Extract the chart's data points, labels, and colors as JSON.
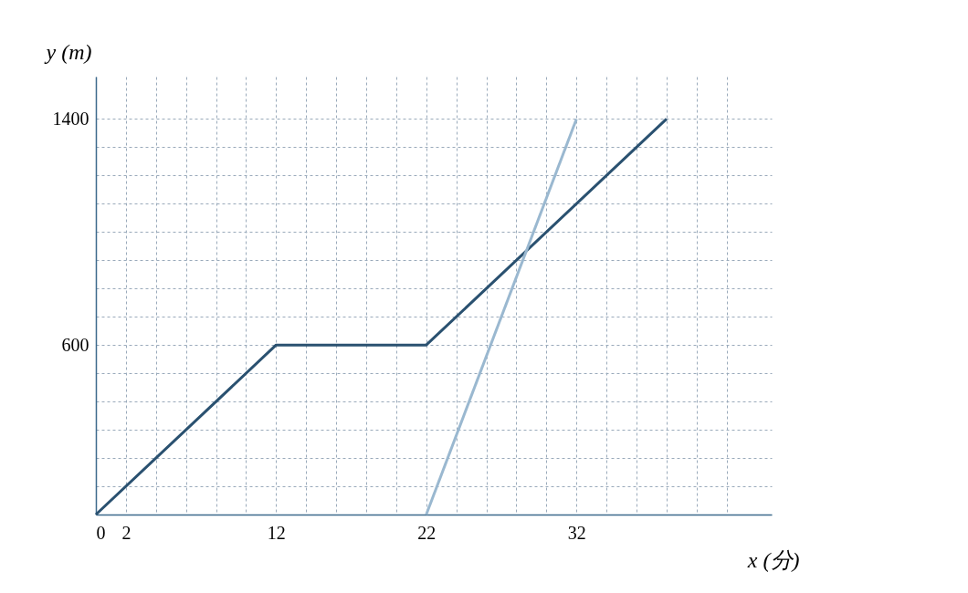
{
  "chart_data": {
    "type": "line",
    "xlabel": "x (分)",
    "ylabel": "y (m)",
    "xlim": [
      0,
      45
    ],
    "ylim": [
      0,
      1550
    ],
    "xticks": [
      0,
      2,
      {
        "value": 4,
        "label": null
      },
      {
        "value": 6,
        "label": null
      },
      {
        "value": 8,
        "label": null
      },
      {
        "value": 10,
        "label": null
      },
      12,
      {
        "value": 14,
        "label": null
      },
      {
        "value": 16,
        "label": null
      },
      {
        "value": 18,
        "label": null
      },
      {
        "value": 20,
        "label": null
      },
      22,
      {
        "value": 24,
        "label": null
      },
      {
        "value": 26,
        "label": null
      },
      {
        "value": 28,
        "label": null
      },
      {
        "value": 30,
        "label": null
      },
      32,
      {
        "value": 34,
        "label": null
      },
      {
        "value": 36,
        "label": null
      },
      {
        "value": 38,
        "label": null
      },
      {
        "value": 40,
        "label": null
      },
      {
        "value": 42,
        "label": null
      }
    ],
    "yticks": [
      {
        "value": 100,
        "label": null
      },
      {
        "value": 200,
        "label": null
      },
      {
        "value": 300,
        "label": null
      },
      {
        "value": 400,
        "label": null
      },
      {
        "value": 500,
        "label": null
      },
      600,
      {
        "value": 700,
        "label": null
      },
      {
        "value": 800,
        "label": null
      },
      {
        "value": 900,
        "label": null
      },
      {
        "value": 1000,
        "label": null
      },
      {
        "value": 1100,
        "label": null
      },
      {
        "value": 1200,
        "label": null
      },
      {
        "value": 1300,
        "label": null
      },
      1400
    ],
    "grid": true,
    "line_style": "solid",
    "marker": "none",
    "legend": false,
    "series": [
      {
        "color": "#2a5170",
        "x": [
          0,
          12,
          22,
          38
        ],
        "values": [
          0,
          600,
          600,
          1400
        ]
      },
      {
        "color": "#9ab8d0",
        "x": [
          22,
          32
        ],
        "values": [
          0,
          1400
        ]
      }
    ]
  }
}
